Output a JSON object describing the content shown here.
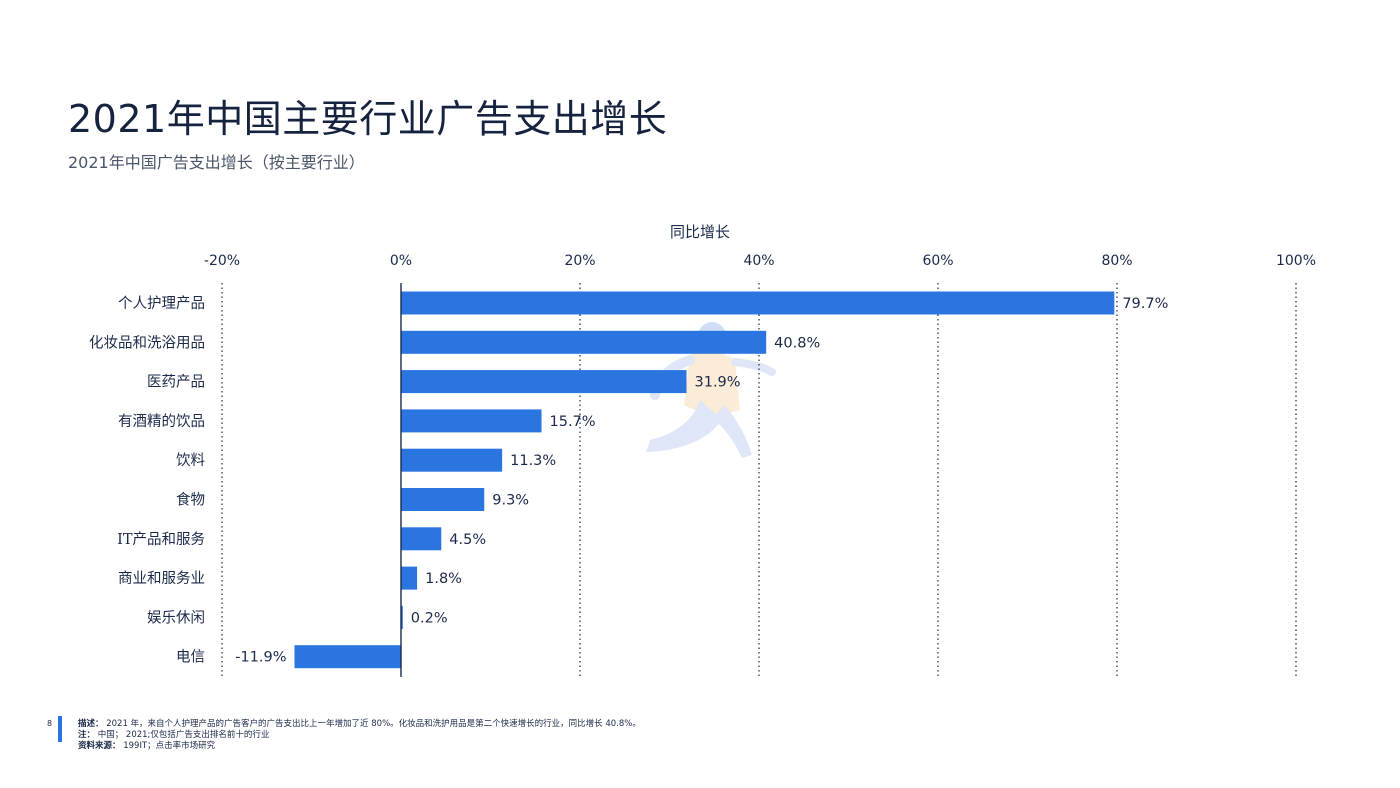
{
  "header": {
    "title": "2021年中国主要行业广告支出增长",
    "subtitle": "2021年中国广告支出增长（按主要行业）"
  },
  "chart_data": {
    "type": "bar",
    "orientation": "horizontal",
    "xlabel": "同比增长",
    "xlim": [
      -20,
      100
    ],
    "xticks": [
      -20,
      0,
      20,
      40,
      60,
      80,
      100
    ],
    "xtick_labels": [
      "-20%",
      "0%",
      "20%",
      "40%",
      "60%",
      "80%",
      "100%"
    ],
    "categories": [
      "个人护理产品",
      "化妆品和洗浴用品",
      "医药产品",
      "有酒精的饮品",
      "饮料",
      "食物",
      "IT产品和服务",
      "商业和服务业",
      "娱乐休闲",
      "电信"
    ],
    "values": [
      79.7,
      40.8,
      31.9,
      15.7,
      11.3,
      9.3,
      4.5,
      1.8,
      0.2,
      -11.9
    ],
    "value_labels": [
      "79.7%",
      "40.8%",
      "31.9%",
      "15.7%",
      "11.3%",
      "9.3%",
      "4.5%",
      "1.8%",
      "0.2%",
      "-11.9%"
    ],
    "bar_color": "#2a75e0",
    "grid": "vertical-dotted"
  },
  "footer": {
    "page_number": "8",
    "description_label": "描述：",
    "description_text": "2021 年，来自个人护理产品的广告客户的广告支出比上一年增加了近 80%。化妆品和洗护用品是第二个快速增长的行业，同比增长 40.8%。",
    "note_label": "注：",
    "note_text": "中国； 2021;仅包括广告支出排名前十的行业",
    "source_label": "资料来源：",
    "source_text": "199IT；点击率市场研究"
  }
}
